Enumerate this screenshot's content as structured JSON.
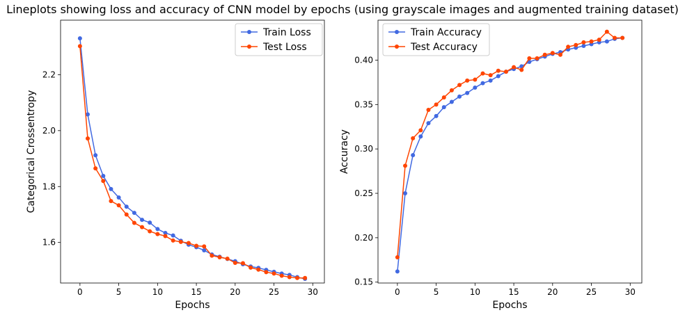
{
  "figure_title": "Lineplots showing loss and accuracy of CNN model by epochs (using grayscale images and augmented training dataset)",
  "colors": {
    "train": "#4169e1",
    "test": "#ff4500"
  },
  "chart_data": [
    {
      "type": "line",
      "xlabel": "Epochs",
      "ylabel": "Categorical Crossentropy",
      "xlim": [
        -2.5,
        31.5
      ],
      "ylim": [
        1.455,
        2.395
      ],
      "xticks": [
        0,
        5,
        10,
        15,
        20,
        25,
        30
      ],
      "yticks": [
        1.6,
        1.8,
        2.0,
        2.2
      ],
      "ytick_labels": [
        "1.6",
        "1.8",
        "2.0",
        "2.2"
      ],
      "legend_position": "top-right",
      "x": [
        0,
        1,
        2,
        3,
        4,
        5,
        6,
        7,
        8,
        9,
        10,
        11,
        12,
        13,
        14,
        15,
        16,
        17,
        18,
        19,
        20,
        21,
        22,
        23,
        24,
        25,
        26,
        27,
        28,
        29
      ],
      "series": [
        {
          "name": "Train Loss",
          "color_key": "train",
          "values": [
            2.33,
            2.058,
            1.912,
            1.838,
            1.791,
            1.761,
            1.728,
            1.706,
            1.681,
            1.671,
            1.648,
            1.634,
            1.625,
            1.606,
            1.592,
            1.583,
            1.572,
            1.557,
            1.549,
            1.541,
            1.533,
            1.522,
            1.514,
            1.509,
            1.502,
            1.495,
            1.489,
            1.484,
            1.476,
            1.47
          ]
        },
        {
          "name": "Test Loss",
          "color_key": "test",
          "values": [
            2.302,
            1.972,
            1.865,
            1.82,
            1.748,
            1.733,
            1.7,
            1.67,
            1.655,
            1.64,
            1.63,
            1.623,
            1.607,
            1.602,
            1.598,
            1.588,
            1.586,
            1.553,
            1.547,
            1.542,
            1.527,
            1.526,
            1.51,
            1.503,
            1.494,
            1.489,
            1.481,
            1.476,
            1.473,
            1.473
          ]
        }
      ]
    },
    {
      "type": "line",
      "xlabel": "Epochs",
      "ylabel": "Accuracy",
      "xlim": [
        -2.5,
        31.5
      ],
      "ylim": [
        0.149,
        0.445
      ],
      "xticks": [
        0,
        5,
        10,
        15,
        20,
        25,
        30
      ],
      "yticks": [
        0.15,
        0.2,
        0.25,
        0.3,
        0.35,
        0.4
      ],
      "ytick_labels": [
        "0.15",
        "0.20",
        "0.25",
        "0.30",
        "0.35",
        "0.40"
      ],
      "legend_position": "top-left",
      "x": [
        0,
        1,
        2,
        3,
        4,
        5,
        6,
        7,
        8,
        9,
        10,
        11,
        12,
        13,
        14,
        15,
        16,
        17,
        18,
        19,
        20,
        21,
        22,
        23,
        24,
        25,
        26,
        27,
        28,
        29
      ],
      "series": [
        {
          "name": "Train Accuracy",
          "color_key": "train",
          "values": [
            0.162,
            0.25,
            0.293,
            0.314,
            0.329,
            0.337,
            0.347,
            0.353,
            0.359,
            0.363,
            0.369,
            0.374,
            0.377,
            0.382,
            0.387,
            0.39,
            0.393,
            0.398,
            0.401,
            0.404,
            0.407,
            0.409,
            0.412,
            0.414,
            0.416,
            0.418,
            0.42,
            0.421,
            0.424,
            0.425
          ]
        },
        {
          "name": "Test Accuracy",
          "color_key": "test",
          "values": [
            0.178,
            0.281,
            0.312,
            0.321,
            0.344,
            0.35,
            0.358,
            0.366,
            0.372,
            0.377,
            0.378,
            0.385,
            0.383,
            0.388,
            0.387,
            0.392,
            0.389,
            0.402,
            0.402,
            0.406,
            0.408,
            0.406,
            0.415,
            0.417,
            0.42,
            0.421,
            0.423,
            0.432,
            0.425,
            0.425
          ]
        }
      ]
    }
  ]
}
